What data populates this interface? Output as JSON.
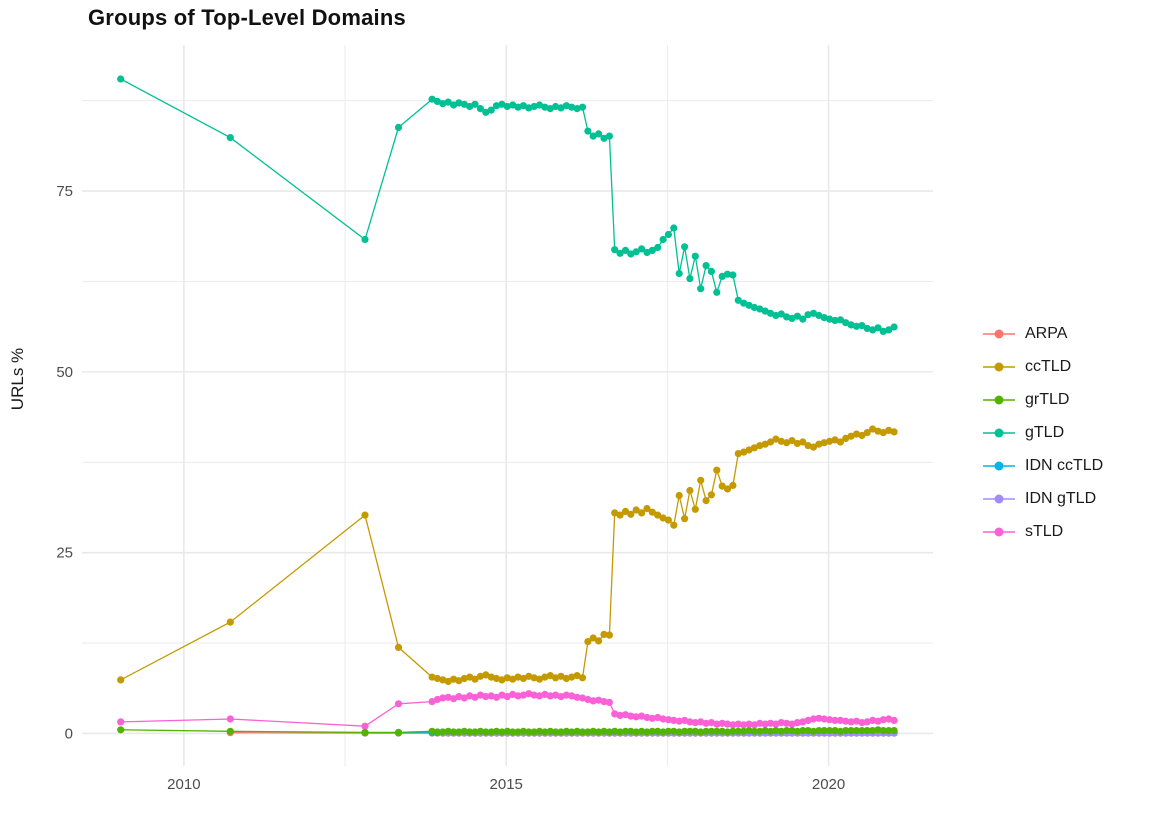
{
  "chart_data": {
    "type": "line",
    "title": "Groups of Top-Level Domains",
    "xlabel": "",
    "ylabel": "URLs %",
    "grid": true,
    "grid_color": "#E9E9E9",
    "legend_position": "right",
    "xlim": [
      2008.42,
      2021.62
    ],
    "ylim": [
      -4.5,
      95.2
    ],
    "x_ticks": [
      2010,
      2015,
      2020
    ],
    "x_minor": [
      2012.5,
      2017.5
    ],
    "y_ticks": [
      0,
      25,
      50,
      75
    ],
    "y_minor": [
      12.5,
      37.5,
      62.5,
      87.5
    ],
    "series": [
      {
        "name": "ARPA",
        "color": "#F8766D",
        "z": 1,
        "sparse": [
          [
            2010.72,
            0.1
          ],
          [
            2012.81,
            0.05
          ],
          [
            2013.33,
            0.05
          ]
        ],
        "dense_start": 2013.85,
        "dense_step": 0.08333,
        "dense_const": {
          "value": 0.05,
          "count": 87
        }
      },
      {
        "name": "ccTLD",
        "color": "#C49A00",
        "z": 6,
        "sparse": [
          [
            2009.02,
            7.4
          ],
          [
            2010.72,
            15.4
          ],
          [
            2012.81,
            30.2
          ],
          [
            2013.33,
            11.9
          ]
        ],
        "dense_start": 2013.85,
        "dense_step": 0.08333,
        "dense": [
          7.8,
          7.6,
          7.4,
          7.2,
          7.5,
          7.3,
          7.6,
          7.8,
          7.5,
          7.9,
          8.1,
          7.8,
          7.6,
          7.4,
          7.7,
          7.5,
          7.8,
          7.6,
          7.9,
          7.7,
          7.5,
          7.8,
          8.0,
          7.7,
          7.9,
          7.6,
          7.8,
          8.0,
          7.7,
          12.7,
          13.2,
          12.8,
          13.7,
          13.6,
          30.5,
          30.2,
          30.7,
          30.3,
          30.9,
          30.5,
          31.1,
          30.6,
          30.2,
          29.8,
          29.5,
          28.8,
          32.9,
          29.7,
          33.6,
          31.0,
          35.0,
          32.2,
          33.0,
          36.4,
          34.2,
          33.8,
          34.3,
          38.7,
          38.9,
          39.2,
          39.5,
          39.8,
          40.0,
          40.3,
          40.7,
          40.4,
          40.2,
          40.5,
          40.1,
          40.3,
          39.8,
          39.6,
          40.0,
          40.2,
          40.4,
          40.6,
          40.3,
          40.8,
          41.1,
          41.4,
          41.2,
          41.6,
          42.1,
          41.8,
          41.6,
          41.9,
          41.7
        ]
      },
      {
        "name": "grTLD",
        "color": "#53B400",
        "z": 5,
        "sparse": [
          [
            2009.02,
            0.5
          ],
          [
            2010.72,
            0.3
          ],
          [
            2012.81,
            0.15
          ],
          [
            2013.33,
            0.15
          ]
        ],
        "dense_start": 2013.85,
        "dense_step": 0.08333,
        "dense": [
          0.3,
          0.2,
          0.2,
          0.3,
          0.2,
          0.2,
          0.3,
          0.2,
          0.2,
          0.3,
          0.2,
          0.2,
          0.3,
          0.2,
          0.3,
          0.2,
          0.2,
          0.3,
          0.2,
          0.2,
          0.3,
          0.2,
          0.3,
          0.2,
          0.2,
          0.3,
          0.2,
          0.3,
          0.2,
          0.2,
          0.3,
          0.2,
          0.3,
          0.2,
          0.3,
          0.2,
          0.3,
          0.3,
          0.2,
          0.3,
          0.2,
          0.3,
          0.3,
          0.2,
          0.3,
          0.3,
          0.2,
          0.3,
          0.3,
          0.3,
          0.2,
          0.3,
          0.3,
          0.3,
          0.3,
          0.2,
          0.3,
          0.3,
          0.3,
          0.4,
          0.3,
          0.3,
          0.4,
          0.3,
          0.4,
          0.3,
          0.4,
          0.4,
          0.3,
          0.4,
          0.4,
          0.3,
          0.4,
          0.4,
          0.4,
          0.4,
          0.3,
          0.4,
          0.4,
          0.4,
          0.4,
          0.4,
          0.4,
          0.5,
          0.4,
          0.4,
          0.4
        ]
      },
      {
        "name": "gTLD",
        "color": "#00C094",
        "z": 7,
        "sparse": [
          [
            2009.02,
            90.5
          ],
          [
            2010.72,
            82.4
          ],
          [
            2012.81,
            68.3
          ],
          [
            2013.33,
            83.8
          ]
        ],
        "dense_start": 2013.85,
        "dense_step": 0.08333,
        "dense": [
          87.7,
          87.4,
          87.1,
          87.3,
          86.9,
          87.2,
          87.0,
          86.7,
          87.0,
          86.4,
          85.9,
          86.2,
          86.8,
          87.0,
          86.7,
          86.9,
          86.6,
          86.8,
          86.5,
          86.7,
          86.9,
          86.6,
          86.4,
          86.7,
          86.5,
          86.8,
          86.6,
          86.4,
          86.6,
          83.3,
          82.6,
          82.9,
          82.3,
          82.6,
          66.9,
          66.4,
          66.8,
          66.3,
          66.6,
          67.0,
          66.5,
          66.8,
          67.2,
          68.3,
          69.0,
          69.9,
          63.6,
          67.3,
          62.9,
          66.0,
          61.5,
          64.7,
          63.9,
          61.0,
          63.2,
          63.5,
          63.4,
          59.9,
          59.5,
          59.2,
          58.9,
          58.7,
          58.4,
          58.1,
          57.8,
          58.0,
          57.6,
          57.4,
          57.7,
          57.3,
          57.9,
          58.1,
          57.8,
          57.5,
          57.3,
          57.1,
          57.2,
          56.8,
          56.5,
          56.3,
          56.4,
          56.0,
          55.8,
          56.1,
          55.6,
          55.8,
          56.2
        ]
      },
      {
        "name": "IDN ccTLD",
        "color": "#00B6EB",
        "z": 2,
        "sparse": [
          [
            2012.81,
            0.1
          ],
          [
            2013.33,
            0.1
          ]
        ],
        "dense_start": 2013.85,
        "dense_step": 0.08333,
        "dense_const": {
          "value": 0.1,
          "count": 87
        }
      },
      {
        "name": "IDN gTLD",
        "color": "#A58AFF",
        "z": 3,
        "sparse": [],
        "dense_start": 2014.02,
        "dense_step": 0.08333,
        "dense_const": {
          "value": 0.05,
          "count": 85
        }
      },
      {
        "name": "sTLD",
        "color": "#FB61D7",
        "z": 4,
        "sparse": [
          [
            2009.02,
            1.6
          ],
          [
            2010.72,
            2.0
          ],
          [
            2012.81,
            1.0
          ],
          [
            2013.33,
            4.1
          ]
        ],
        "dense_start": 2013.85,
        "dense_step": 0.08333,
        "dense": [
          4.4,
          4.7,
          4.9,
          5.0,
          4.8,
          5.1,
          4.9,
          5.2,
          5.0,
          5.3,
          5.1,
          5.2,
          5.0,
          5.3,
          5.1,
          5.4,
          5.2,
          5.3,
          5.5,
          5.3,
          5.2,
          5.4,
          5.2,
          5.3,
          5.1,
          5.3,
          5.2,
          5.0,
          4.9,
          4.7,
          4.5,
          4.6,
          4.4,
          4.3,
          2.7,
          2.5,
          2.6,
          2.4,
          2.3,
          2.4,
          2.2,
          2.1,
          2.2,
          2.0,
          1.9,
          1.8,
          1.7,
          1.8,
          1.6,
          1.5,
          1.6,
          1.4,
          1.5,
          1.3,
          1.4,
          1.3,
          1.2,
          1.3,
          1.2,
          1.3,
          1.2,
          1.4,
          1.3,
          1.4,
          1.3,
          1.5,
          1.4,
          1.3,
          1.5,
          1.6,
          1.8,
          2.0,
          2.1,
          2.0,
          1.9,
          1.8,
          1.8,
          1.7,
          1.6,
          1.7,
          1.5,
          1.6,
          1.8,
          1.7,
          1.9,
          2.0,
          1.8
        ]
      }
    ]
  }
}
